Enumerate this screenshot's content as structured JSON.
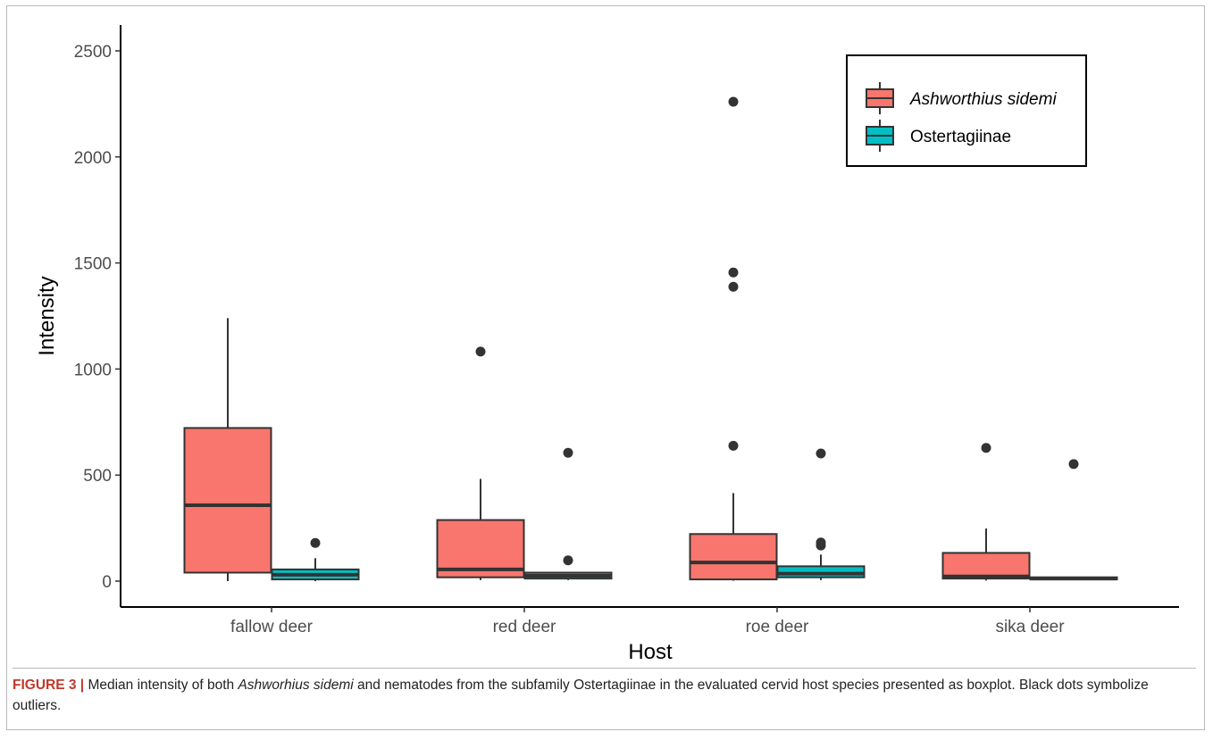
{
  "chart_data": {
    "type": "boxplot",
    "xlabel": "Host",
    "ylabel": "Intensity",
    "ylim": [
      -100,
      2620
    ],
    "y_ticks": [
      0,
      500,
      1000,
      1500,
      2000,
      2500
    ],
    "categories": [
      "fallow deer",
      "red deer",
      "roe deer",
      "sika deer"
    ],
    "legend_position": "top-right",
    "colors": {
      "Ashworthius sidemi": "#F8766D",
      "Ostertagiinae": "#00BFC4"
    },
    "series": [
      {
        "name": "Ashworthius sidemi",
        "boxes": [
          {
            "min": 0,
            "q1": 40,
            "median": 358,
            "q3": 722,
            "max": 1240,
            "outliers": []
          },
          {
            "min": 5,
            "q1": 18,
            "median": 55,
            "q3": 288,
            "max": 482,
            "outliers": [
              1082
            ]
          },
          {
            "min": 2,
            "q1": 8,
            "median": 88,
            "q3": 222,
            "max": 415,
            "outliers": [
              638,
              1388,
              1455,
              2260
            ]
          },
          {
            "min": 3,
            "q1": 12,
            "median": 22,
            "q3": 133,
            "max": 248,
            "outliers": [
              628
            ]
          }
        ]
      },
      {
        "name": "Ostertagiinae",
        "boxes": [
          {
            "min": 0,
            "q1": 8,
            "median": 30,
            "q3": 55,
            "max": 108,
            "outliers": [
              180
            ]
          },
          {
            "min": 5,
            "q1": 12,
            "median": 25,
            "q3": 40,
            "max": 42,
            "outliers": [
              98,
              605
            ]
          },
          {
            "min": 5,
            "q1": 18,
            "median": 35,
            "q3": 70,
            "max": 125,
            "outliers": [
              168,
              182,
              602
            ]
          },
          {
            "min": 5,
            "q1": 8,
            "median": 12,
            "q3": 18,
            "max": 20,
            "outliers": [
              552
            ]
          }
        ]
      }
    ]
  },
  "caption": {
    "label": "FIGURE 3 |",
    "text_1": " Median intensity of both ",
    "species": "Ashworhius sidemi",
    "text_2": " and nematodes from the subfamily Ostertagiinae in the evaluated cervid host species presented as boxplot. Black dots symbolize outliers."
  }
}
